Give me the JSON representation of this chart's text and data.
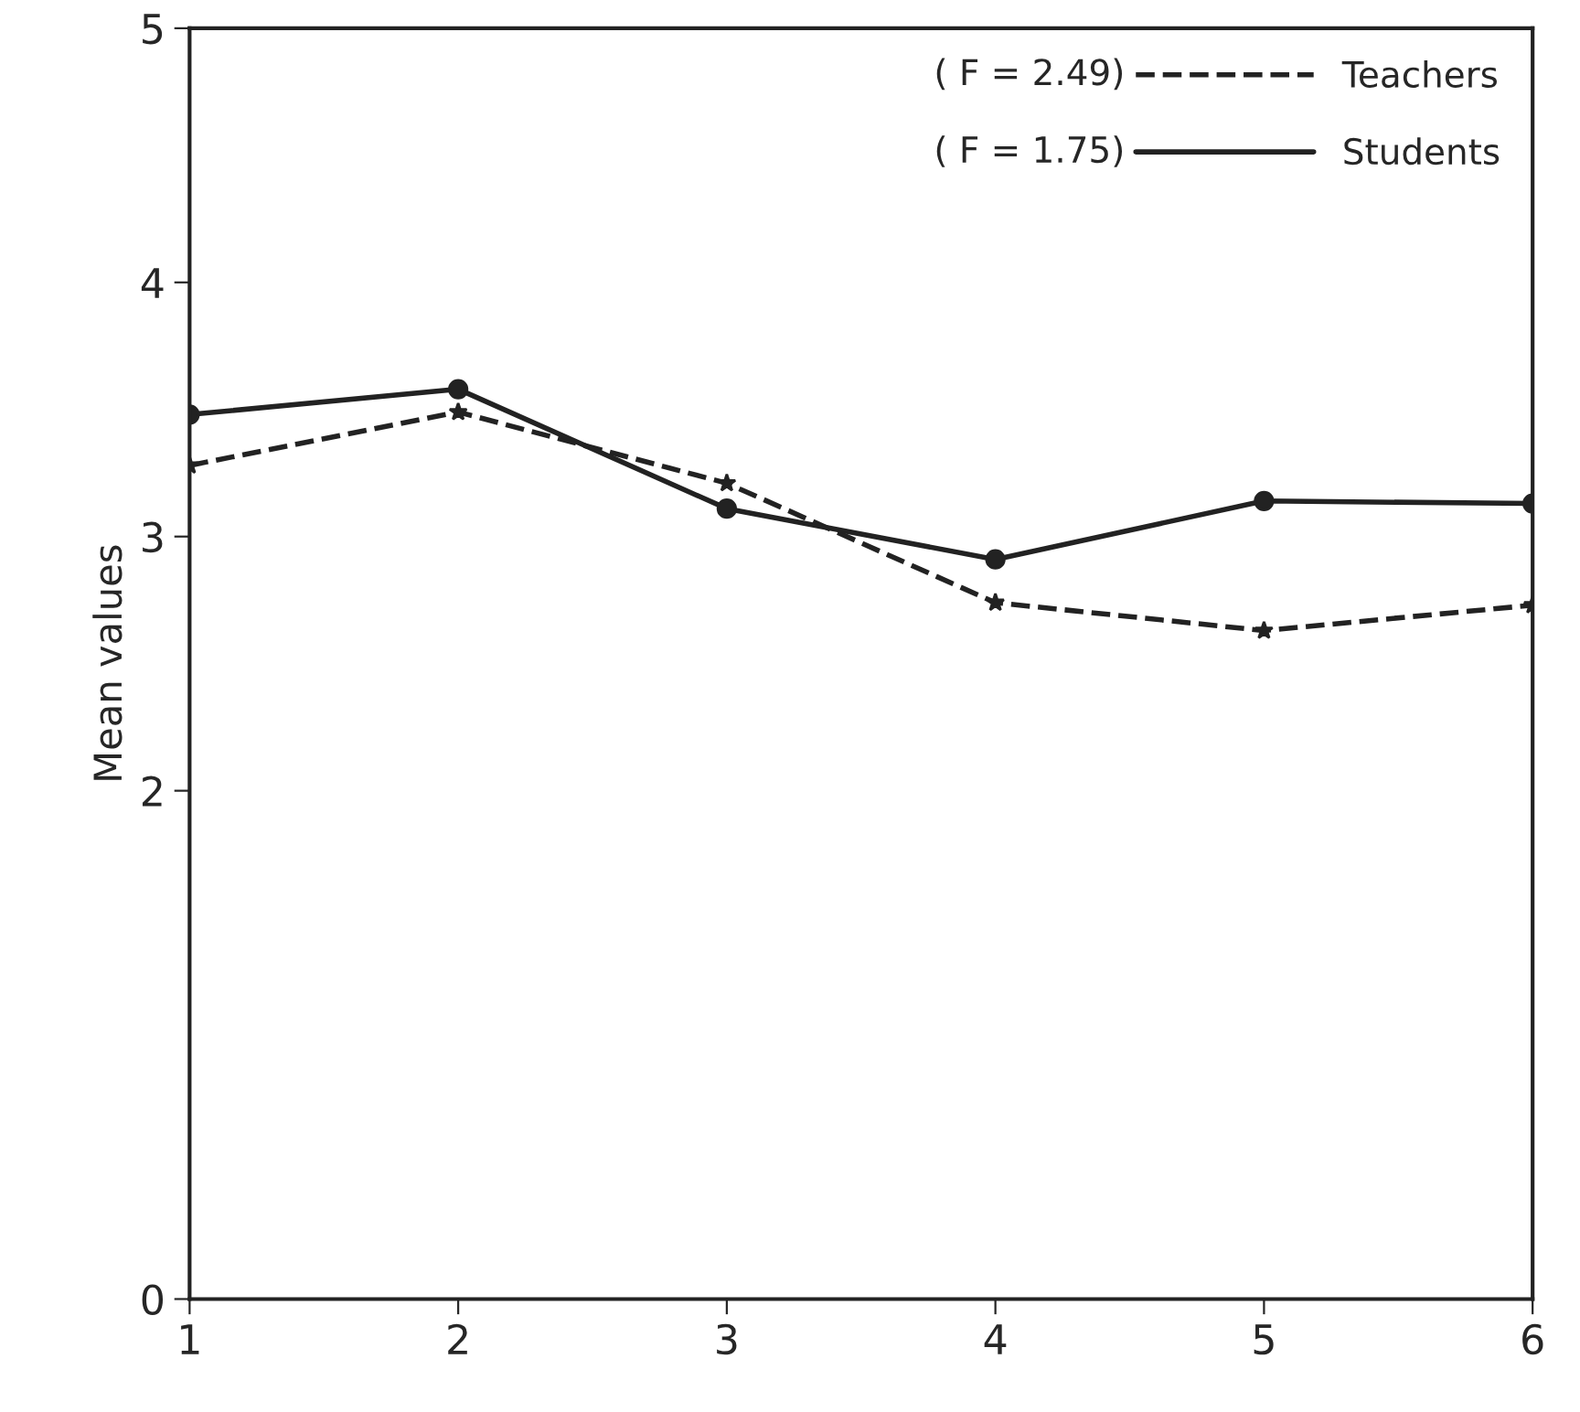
{
  "chart_data": {
    "type": "line",
    "ylabel": "Mean values",
    "categories": [
      "1",
      "2",
      "3",
      "4",
      "5",
      "6"
    ],
    "series": [
      {
        "name": "Teachers",
        "color": "#222222",
        "line_style": "dashed",
        "marker": "star",
        "values": [
          3.28,
          3.49,
          3.21,
          2.74,
          2.63,
          2.73
        ]
      },
      {
        "name": "Students",
        "color": "#222222",
        "line_style": "solid",
        "marker": "circle",
        "values": [
          3.48,
          3.58,
          3.11,
          2.91,
          3.14,
          3.13
        ]
      }
    ],
    "annotations": [
      "( F = 2.49)",
      "( F = 1.75)"
    ],
    "ylim": [
      0,
      5
    ],
    "yticks": [
      0,
      2,
      3,
      4,
      5
    ],
    "grid": false,
    "legend": "top right"
  }
}
